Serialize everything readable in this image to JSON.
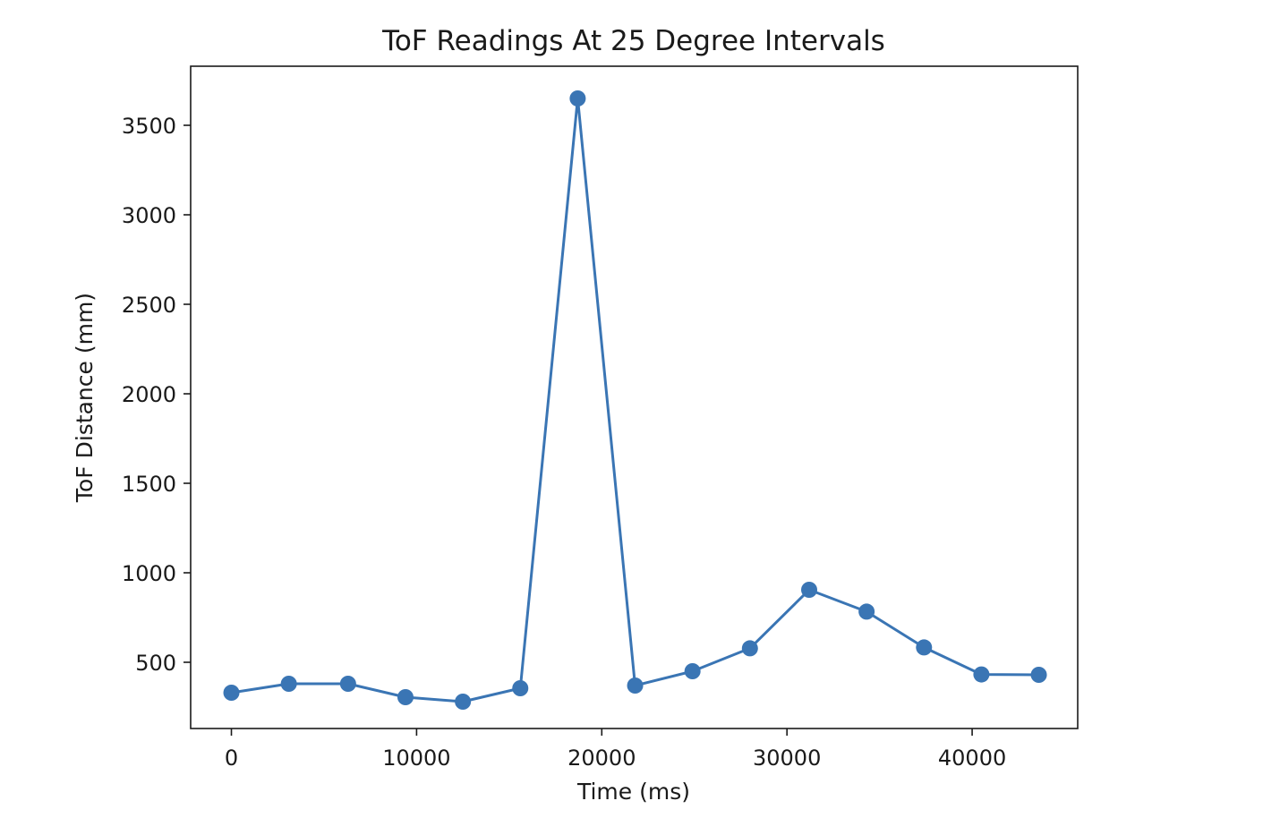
{
  "chart_data": {
    "type": "line",
    "title": "ToF Readings At 25 Degree Intervals",
    "xlabel": "Time (ms)",
    "ylabel": "ToF Distance (mm)",
    "xlim": [
      -2200,
      45700
    ],
    "ylim": [
      130,
      3830
    ],
    "x_ticks": [
      0,
      10000,
      20000,
      30000,
      40000
    ],
    "y_ticks": [
      500,
      1000,
      1500,
      2000,
      2500,
      3000,
      3500
    ],
    "grid": false,
    "series": [
      {
        "color": "#3a75b4",
        "marker": "circle",
        "x": [
          0,
          3100,
          6300,
          9400,
          12500,
          15600,
          18700,
          21800,
          24900,
          28000,
          31200,
          34300,
          37400,
          40500,
          43600
        ],
        "y": [
          330,
          380,
          380,
          305,
          280,
          355,
          3650,
          370,
          450,
          578,
          905,
          783,
          583,
          432,
          430
        ]
      }
    ]
  }
}
